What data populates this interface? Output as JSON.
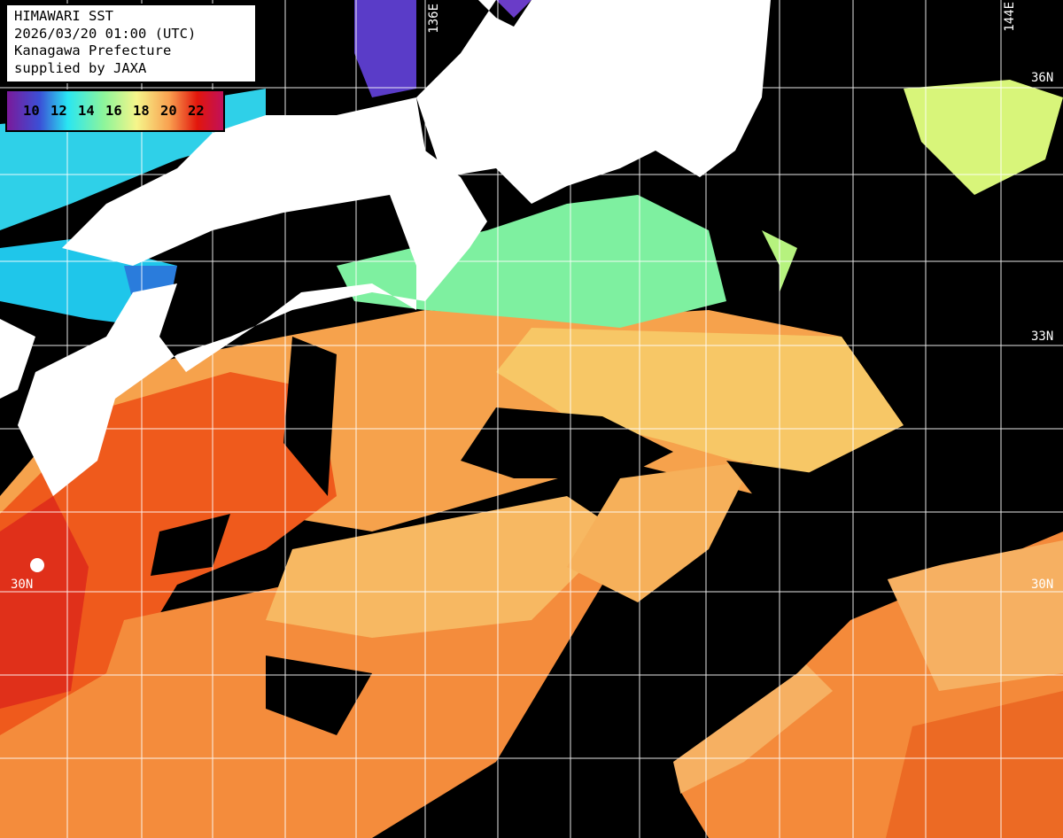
{
  "title_box": {
    "title": "HIMAWARI SST",
    "datetime": "2026/03/20 01:00 (UTC)",
    "region": "Kanagawa Prefecture",
    "credit": "supplied by JAXA"
  },
  "legend": {
    "ticks": [
      "10",
      "12",
      "14",
      "16",
      "18",
      "20",
      "22"
    ],
    "colors": [
      "#7a1a9a",
      "#3b4fd6",
      "#29e6f2",
      "#8ef59a",
      "#f6f58a",
      "#f9a050",
      "#e2160c",
      "#c0105a"
    ]
  },
  "grid_labels": {
    "lon": [
      "136E",
      "144E"
    ],
    "lat": [
      "36N",
      "33N",
      "30N",
      "30N"
    ]
  },
  "colors": {
    "land": "#ffffff",
    "no_data": "#000000",
    "grid": "#ffffff"
  }
}
